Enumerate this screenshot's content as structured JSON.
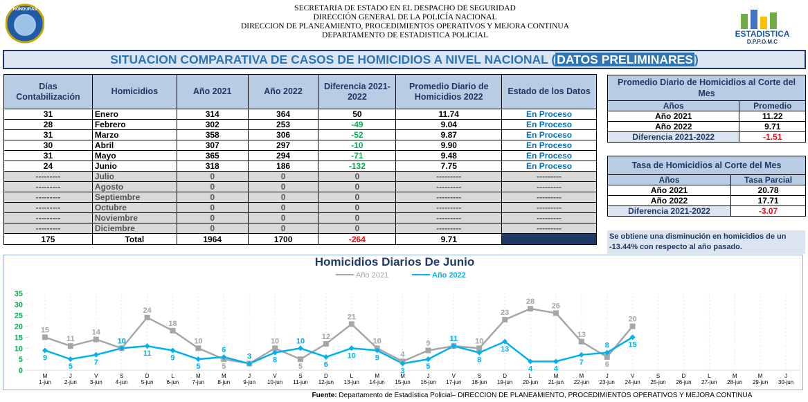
{
  "header": {
    "lines": [
      "SECRETARIA DE ESTADO EN EL DESPACHO DE SEGURIDAD",
      "DIRECCIÓN GENERAL DE LA POLICÍA NACIONAL",
      "DIRECCION DE PLANEAMIENTO, PROCEDIMIENTOS OPERATIVOS Y MEJORA CONTINUA",
      "DEPARTAMENTO DE ESTADISTICA POLICIAL"
    ],
    "logo_left": "HONDURAS",
    "logo_right": "ESTADISTICA",
    "logo_right_sub": "D.P.P.O.M.C"
  },
  "banner": {
    "title": "SITUACION COMPARATIVA DE CASOS DE HOMICIDIOS A NIVEL NACIONAL (",
    "highlight": "DATOS PRELIMINARES",
    "close": ")"
  },
  "table": {
    "headers": [
      "Días Contabilización",
      "Homicidios",
      "Año 2021",
      "Año 2022",
      "Diferencia 2021-2022",
      "Promedio Diario de Homicidios 2022",
      "Estado de los Datos"
    ],
    "rows": [
      [
        "31",
        "Enero",
        "314",
        "364",
        "50",
        "11.74",
        "En Proceso"
      ],
      [
        "28",
        "Febrero",
        "302",
        "253",
        "-49",
        "9.04",
        "En Proceso"
      ],
      [
        "31",
        "Marzo",
        "358",
        "306",
        "-52",
        "9.87",
        "En Proceso"
      ],
      [
        "30",
        "Abril",
        "307",
        "297",
        "-10",
        "9.90",
        "En Proceso"
      ],
      [
        "31",
        "Mayo",
        "365",
        "294",
        "-71",
        "9.48",
        "En Proceso"
      ],
      [
        "24",
        "Junio",
        "318",
        "186",
        "-132",
        "7.75",
        "En Proceso"
      ],
      [
        "---------",
        "Julio",
        "0",
        "0",
        "0",
        "---------",
        "---------"
      ],
      [
        "---------",
        "Agosto",
        "0",
        "0",
        "0",
        "---------",
        "---------"
      ],
      [
        "---------",
        "Septiembre",
        "0",
        "0",
        "0",
        "---------",
        "---------"
      ],
      [
        "---------",
        "Octubre",
        "0",
        "0",
        "0",
        "---------",
        "---------"
      ],
      [
        "---------",
        "Noviembre",
        "0",
        "0",
        "0",
        "---------",
        "---------"
      ],
      [
        "---------",
        "Diciembre",
        "0",
        "0",
        "0",
        "---------",
        "---------"
      ]
    ],
    "total": [
      "175",
      "Total",
      "1964",
      "1700",
      "-264",
      "9.71"
    ]
  },
  "average_table": {
    "title": "Promedio Diario de Homicidios al Corte del Mes",
    "headers": [
      "Años",
      "Promedio"
    ],
    "rows": [
      [
        "Año 2021",
        "11.22"
      ],
      [
        "Año 2022",
        "9.71"
      ],
      [
        "Diferencia 2021-2022",
        "-1.51"
      ]
    ]
  },
  "rate_table": {
    "title": "Tasa de Homicidios al Corte del Mes",
    "headers": [
      "Años",
      "Tasa Parcial"
    ],
    "rows": [
      [
        "Año 2021",
        "20.78"
      ],
      [
        "Año 2022",
        "17.71"
      ],
      [
        "Diferencia 2021-2022",
        "-3.07"
      ]
    ]
  },
  "note": "Se obtiene una disminución en homicidios de un -13.44% con respecto al año pasado.",
  "chart_data": {
    "type": "line",
    "title": "Homicidios Diarios De Junio",
    "categories": [
      "1-jun",
      "2-jun",
      "3-jun",
      "4-jun",
      "5-jun",
      "6-jun",
      "7-jun",
      "8-jun",
      "9-jun",
      "10-jun",
      "11-jun",
      "12-jun",
      "13-jun",
      "14-jun",
      "15-jun",
      "16-jun",
      "17-jun",
      "18-jun",
      "19-jun",
      "20-jun",
      "21-jun",
      "22-jun",
      "23-jun",
      "24-jun",
      "25-jun",
      "26-jun",
      "27-jun",
      "28-jun",
      "29-jun",
      "30-jun"
    ],
    "weekdays": [
      "M",
      "J",
      "V",
      "S",
      "D",
      "L",
      "M",
      "M",
      "J",
      "V",
      "S",
      "D",
      "L",
      "M",
      "M",
      "J",
      "V",
      "S",
      "D",
      "L",
      "M",
      "M",
      "J",
      "V",
      "S",
      "D",
      "L",
      "M",
      "M",
      "J"
    ],
    "series": [
      {
        "name": "Año 2021",
        "color": "#a6a6a6",
        "values": [
          15,
          11,
          14,
          10,
          24,
          18,
          10,
          5,
          3,
          10,
          5,
          12,
          21,
          10,
          4,
          9,
          11,
          10,
          23,
          28,
          26,
          13,
          6,
          20,
          null,
          null,
          null,
          null,
          null,
          null
        ]
      },
      {
        "name": "Año 2022",
        "color": "#00b0f0",
        "values": [
          9,
          5,
          7,
          10,
          11,
          9,
          5,
          6,
          3,
          8,
          10,
          6,
          10,
          9,
          3,
          5,
          11,
          8,
          13,
          4,
          4,
          7,
          8,
          15,
          null,
          null,
          null,
          null,
          null,
          null
        ]
      }
    ],
    "ylim": [
      0,
      35
    ],
    "yticks": [
      0,
      5,
      10,
      15,
      20,
      25,
      30,
      35
    ]
  },
  "source": {
    "label": "Fuente:",
    "text": " Departamento de Estadística Policial– DIRECCION DE PLANEAMIENTO, PROCEDIMIENTOS OPERATIVOS Y MEJORA CONTINUA"
  }
}
